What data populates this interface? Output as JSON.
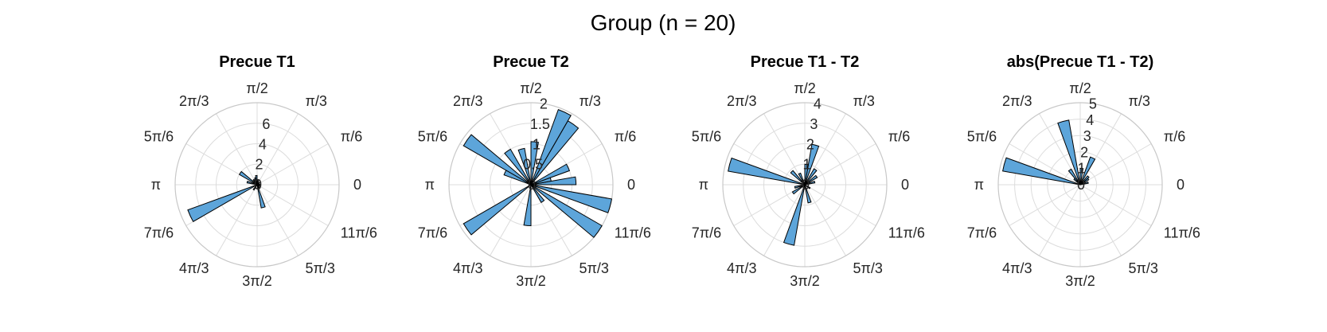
{
  "figure_title": "Group (n = 20)",
  "bar_color": "#5da5da",
  "bar_edge_color": "#000000",
  "angle_tick_labels": [
    "0",
    "π/6",
    "π/3",
    "π/2",
    "2π/3",
    "5π/6",
    "π",
    "7π/6",
    "4π/3",
    "3π/2",
    "5π/3",
    "11π/6"
  ],
  "chart_data": [
    {
      "type": "polar-histogram",
      "title": "Precue T1",
      "rlim": [
        0,
        8
      ],
      "r_ticks": [
        "2",
        "4",
        "6"
      ],
      "bin_count": 36,
      "bin_width_deg": 10,
      "bins": [
        {
          "center_deg": 5,
          "count": 0.3
        },
        {
          "center_deg": 25,
          "count": 0.2
        },
        {
          "center_deg": 45,
          "count": 0.3
        },
        {
          "center_deg": 75,
          "count": 0.4
        },
        {
          "center_deg": 95,
          "count": 0.9
        },
        {
          "center_deg": 105,
          "count": 0.7
        },
        {
          "center_deg": 125,
          "count": 0.6
        },
        {
          "center_deg": 145,
          "count": 2.0
        },
        {
          "center_deg": 165,
          "count": 1.0
        },
        {
          "center_deg": 205,
          "count": 7.2
        },
        {
          "center_deg": 235,
          "count": 0.6
        },
        {
          "center_deg": 285,
          "count": 2.3
        },
        {
          "center_deg": 305,
          "count": 0.4
        },
        {
          "center_deg": 335,
          "count": 0.3
        }
      ]
    },
    {
      "type": "polar-histogram",
      "title": "Precue T2",
      "rlim": [
        0,
        2
      ],
      "r_ticks": [
        "0.5",
        "1",
        "1.5",
        "2"
      ],
      "bin_count": 36,
      "bin_width_deg": 10,
      "bins": [
        {
          "center_deg": 5,
          "count": 1.1
        },
        {
          "center_deg": 15,
          "count": 0.5
        },
        {
          "center_deg": 25,
          "count": 1.0
        },
        {
          "center_deg": 55,
          "count": 1.8
        },
        {
          "center_deg": 65,
          "count": 1.95
        },
        {
          "center_deg": 85,
          "count": 1.05
        },
        {
          "center_deg": 105,
          "count": 0.9
        },
        {
          "center_deg": 125,
          "count": 1.0
        },
        {
          "center_deg": 145,
          "count": 1.9
        },
        {
          "center_deg": 155,
          "count": 0.7
        },
        {
          "center_deg": 215,
          "count": 1.9
        },
        {
          "center_deg": 265,
          "count": 1.0
        },
        {
          "center_deg": 305,
          "count": 0.5
        },
        {
          "center_deg": 325,
          "count": 2.0
        },
        {
          "center_deg": 345,
          "count": 2.0
        }
      ]
    },
    {
      "type": "polar-histogram",
      "title": "Precue T1 - T2",
      "rlim": [
        0,
        4
      ],
      "r_ticks": [
        "1",
        "2",
        "3",
        "4"
      ],
      "bin_count": 36,
      "bin_width_deg": 10,
      "bins": [
        {
          "center_deg": 15,
          "count": 0.5
        },
        {
          "center_deg": 35,
          "count": 0.7
        },
        {
          "center_deg": 55,
          "count": 0.9
        },
        {
          "center_deg": 75,
          "count": 2.0
        },
        {
          "center_deg": 85,
          "count": 1.0
        },
        {
          "center_deg": 115,
          "count": 0.6
        },
        {
          "center_deg": 135,
          "count": 0.9
        },
        {
          "center_deg": 165,
          "count": 3.8
        },
        {
          "center_deg": 195,
          "count": 0.5
        },
        {
          "center_deg": 215,
          "count": 0.7
        },
        {
          "center_deg": 255,
          "count": 3.0
        },
        {
          "center_deg": 285,
          "count": 0.9
        },
        {
          "center_deg": 325,
          "count": 0.3
        }
      ]
    },
    {
      "type": "polar-histogram",
      "title": "abs(Precue T1 - T2)",
      "rlim": [
        0,
        5
      ],
      "r_ticks": [
        "1",
        "2",
        "3",
        "4",
        "5"
      ],
      "bin_count": 36,
      "bin_width_deg": 10,
      "bins": [
        {
          "center_deg": 15,
          "count": 0.5
        },
        {
          "center_deg": 35,
          "count": 0.6
        },
        {
          "center_deg": 45,
          "count": 0.7
        },
        {
          "center_deg": 65,
          "count": 1.8
        },
        {
          "center_deg": 85,
          "count": 1.0
        },
        {
          "center_deg": 105,
          "count": 4.0
        },
        {
          "center_deg": 125,
          "count": 1.1
        },
        {
          "center_deg": 135,
          "count": 0.5
        },
        {
          "center_deg": 165,
          "count": 4.8
        }
      ]
    }
  ]
}
